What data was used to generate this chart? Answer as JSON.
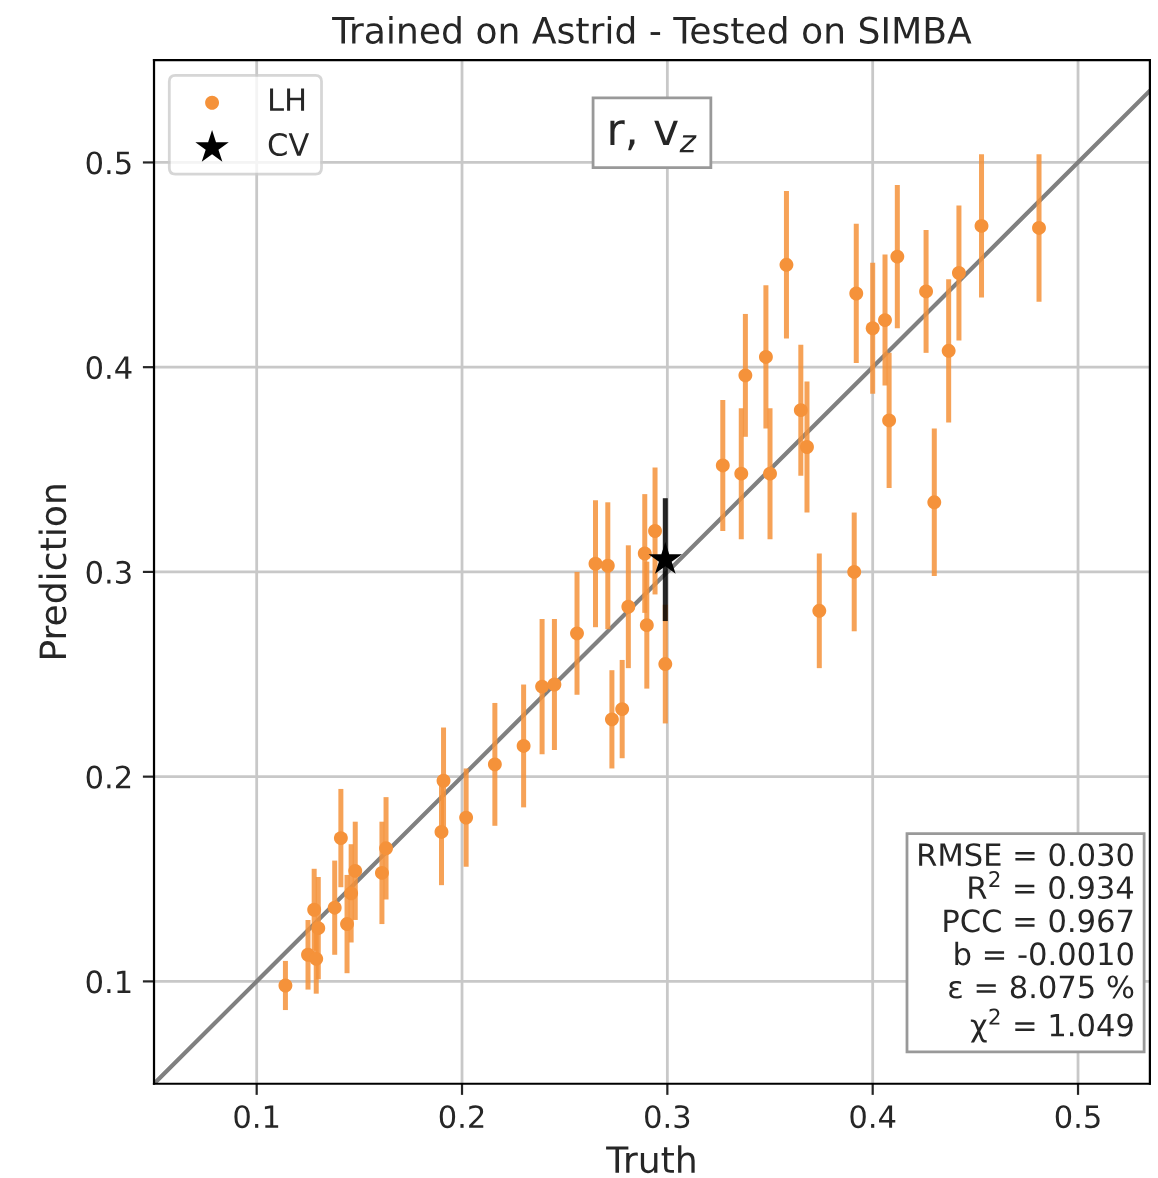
{
  "chart_data": {
    "type": "scatter",
    "title": "Trained on Astrid - Tested on SIMBA",
    "xlabel": "Truth",
    "ylabel": "Prediction",
    "xlim": [
      0.05,
      0.535
    ],
    "ylim": [
      0.05,
      0.55
    ],
    "xticks": [
      0.1,
      0.2,
      0.3,
      0.4,
      0.5
    ],
    "yticks": [
      0.1,
      0.2,
      0.3,
      0.4,
      0.5
    ],
    "grid": true,
    "legend": "top left",
    "annotations": [
      "r, v$_{z}$",
      "RMSE = 0.030\nR$^{2}$ = 0.934\nPCC = 0.967\nb = -0.0010\nε = 8.075 %\nχ$^{2}$ = 1.049"
    ],
    "series": [
      {
        "type": "line",
        "color": "#808080",
        "marker": "none",
        "x": [
          0.05,
          0.535
        ],
        "values": [
          0.05,
          0.535
        ]
      },
      {
        "name": "LH",
        "color": "#f5923a",
        "marker": "circle",
        "x": [
          0.114,
          0.125,
          0.128,
          0.129,
          0.13,
          0.138,
          0.141,
          0.144,
          0.146,
          0.148,
          0.161,
          0.163,
          0.19,
          0.191,
          0.202,
          0.216,
          0.23,
          0.239,
          0.245,
          0.256,
          0.265,
          0.271,
          0.273,
          0.278,
          0.281,
          0.289,
          0.29,
          0.294,
          0.299,
          0.327,
          0.336,
          0.338,
          0.348,
          0.35,
          0.358,
          0.365,
          0.368,
          0.374,
          0.391,
          0.392,
          0.4,
          0.406,
          0.408,
          0.412,
          0.426,
          0.43,
          0.437,
          0.442,
          0.453,
          0.481
        ],
        "values": [
          0.098,
          0.113,
          0.135,
          0.111,
          0.126,
          0.136,
          0.17,
          0.128,
          0.143,
          0.154,
          0.153,
          0.165,
          0.173,
          0.198,
          0.18,
          0.206,
          0.215,
          0.244,
          0.245,
          0.27,
          0.304,
          0.303,
          0.228,
          0.233,
          0.283,
          0.309,
          0.274,
          0.32,
          0.255,
          0.352,
          0.348,
          0.396,
          0.405,
          0.348,
          0.45,
          0.379,
          0.361,
          0.281,
          0.3,
          0.436,
          0.419,
          0.423,
          0.374,
          0.454,
          0.437,
          0.334,
          0.408,
          0.446,
          0.469,
          0.468
        ],
        "errors": [
          0.012,
          0.017,
          0.02,
          0.017,
          0.025,
          0.023,
          0.024,
          0.024,
          0.024,
          0.024,
          0.025,
          0.025,
          0.026,
          0.026,
          0.024,
          0.03,
          0.03,
          0.033,
          0.032,
          0.03,
          0.031,
          0.031,
          0.024,
          0.024,
          0.03,
          0.029,
          0.031,
          0.031,
          0.029,
          0.032,
          0.032,
          0.03,
          0.035,
          0.032,
          0.036,
          0.032,
          0.032,
          0.028,
          0.029,
          0.034,
          0.032,
          0.032,
          0.033,
          0.035,
          0.03,
          0.036,
          0.035,
          0.033,
          0.035,
          0.036
        ]
      },
      {
        "name": "CV",
        "color": "#000000",
        "marker": "star",
        "x": [
          0.299
        ],
        "values": [
          0.306
        ],
        "errors": [
          0.03
        ]
      }
    ]
  }
}
